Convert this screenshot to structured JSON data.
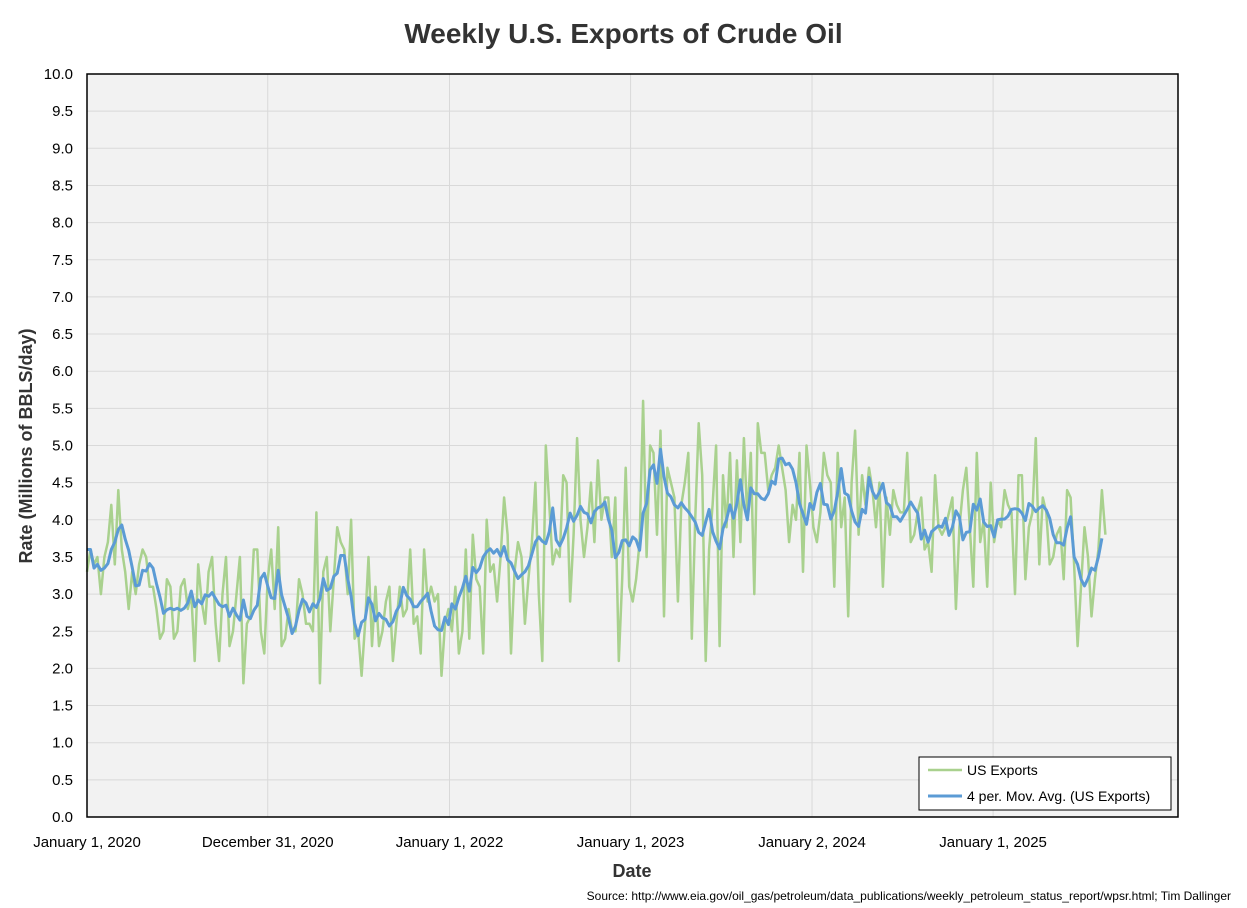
{
  "chart_data": {
    "type": "line",
    "title": "Weekly U.S. Exports of Crude Oil",
    "xlabel": "Date",
    "ylabel": "Rate (Millions of BBLS/day)",
    "ylim": [
      0,
      10
    ],
    "ytick_step": 0.5,
    "yticks": [
      "0.0",
      "0.5",
      "1.0",
      "1.5",
      "2.0",
      "2.5",
      "3.0",
      "3.5",
      "4.0",
      "4.5",
      "5.0",
      "5.5",
      "6.0",
      "6.5",
      "7.0",
      "7.5",
      "8.0",
      "8.5",
      "9.0",
      "9.5",
      "10.0"
    ],
    "x_week_range": [
      0,
      313.9
    ],
    "xticks": [
      {
        "label": "January 1, 2020",
        "week": 0
      },
      {
        "label": "December 31, 2020",
        "week": 52
      },
      {
        "label": "January 1, 2022",
        "week": 104.3
      },
      {
        "label": "January 1, 2023",
        "week": 156.4
      },
      {
        "label": "January 2, 2024",
        "week": 208.6
      },
      {
        "label": "January 1, 2025",
        "week": 260.7
      }
    ],
    "grid": true,
    "legend_position": "bottom-right",
    "series": [
      {
        "name": "US Exports",
        "color": "#a9d18e",
        "values": [
          3.3,
          3.6,
          3.4,
          3.5,
          3.0,
          3.5,
          3.7,
          4.2,
          3.4,
          4.4,
          3.6,
          3.3,
          2.8,
          3.3,
          3.0,
          3.4,
          3.6,
          3.5,
          3.1,
          3.1,
          2.8,
          2.4,
          2.5,
          3.2,
          3.1,
          2.4,
          2.5,
          3.1,
          3.2,
          2.8,
          3.0,
          2.1,
          3.4,
          2.9,
          2.6,
          3.3,
          3.5,
          2.6,
          2.1,
          3.0,
          3.5,
          2.3,
          2.5,
          3.0,
          3.5,
          1.8,
          2.6,
          2.7,
          3.6,
          3.6,
          2.5,
          2.2,
          3.2,
          3.6,
          2.8,
          3.9,
          2.3,
          2.4,
          2.8,
          2.5,
          2.5,
          3.2,
          3.0,
          2.6,
          2.6,
          2.5,
          4.1,
          1.8,
          3.3,
          3.5,
          2.5,
          3.2,
          3.9,
          3.7,
          3.6,
          3.0,
          4.0,
          2.4,
          2.5,
          1.9,
          2.6,
          3.5,
          2.3,
          3.1,
          2.3,
          2.5,
          2.9,
          3.1,
          2.1,
          2.6,
          3.1,
          2.7,
          2.8,
          3.6,
          2.6,
          2.7,
          2.2,
          3.6,
          2.9,
          3.1,
          2.9,
          3.0,
          1.9,
          2.6,
          2.8,
          2.5,
          3.1,
          2.2,
          2.5,
          3.6,
          2.4,
          3.8,
          3.2,
          3.1,
          2.2,
          4.0,
          3.3,
          3.4,
          2.9,
          3.5,
          4.3,
          3.8,
          2.2,
          3.3,
          3.7,
          3.5,
          2.6,
          3.2,
          3.7,
          4.5,
          3.0,
          2.1,
          5.0,
          4.2,
          3.4,
          3.6,
          3.5,
          4.6,
          4.5,
          2.9,
          3.8,
          5.1,
          4.0,
          3.5,
          3.9,
          4.5,
          3.7,
          4.8,
          4.0,
          4.3,
          4.3,
          3.5,
          4.3,
          2.1,
          3.2,
          4.7,
          3.1,
          2.9,
          3.2,
          3.7,
          5.6,
          3.5,
          5.0,
          4.9,
          3.8,
          5.2,
          2.7,
          4.7,
          4.5,
          4.3,
          2.9,
          4.2,
          4.5,
          4.9,
          2.4,
          4.0,
          5.3,
          4.6,
          2.1,
          3.6,
          4.2,
          5.0,
          2.3,
          4.6,
          3.9,
          4.9,
          3.5,
          4.8,
          3.7,
          5.1,
          4.0,
          4.9,
          3.0,
          5.3,
          4.9,
          4.9,
          4.4,
          4.6,
          4.7,
          5.0,
          4.7,
          4.4,
          3.7,
          4.2,
          4.0,
          4.9,
          3.3,
          5.0,
          4.5,
          3.9,
          3.7,
          4.1,
          4.9,
          4.6,
          4.5,
          3.1,
          4.9,
          3.9,
          4.3,
          2.7,
          4.5,
          5.2,
          3.8,
          4.6,
          4.2,
          4.7,
          4.4,
          3.9,
          4.5,
          3.1,
          4.3,
          3.8,
          4.4,
          4.2,
          4.1,
          4.1,
          4.9,
          3.7,
          3.8,
          4.1,
          4.3,
          3.6,
          3.7,
          3.3,
          4.6,
          3.9,
          3.8,
          3.9,
          4.1,
          4.3,
          2.8,
          3.9,
          4.4,
          4.7,
          3.9,
          3.1,
          4.9,
          3.7,
          4.0,
          3.1,
          4.5,
          3.7,
          4.0,
          3.9,
          4.4,
          4.2,
          4.1,
          3.0,
          4.6,
          4.6,
          3.2,
          3.9,
          4.1,
          5.1,
          3.4,
          4.3,
          4.1,
          3.4,
          3.5,
          3.8,
          3.9,
          3.2,
          4.4,
          4.3,
          3.4,
          2.3,
          3.1,
          3.9,
          3.5,
          2.7,
          3.2,
          3.6,
          4.4,
          3.8
        ]
      },
      {
        "name": "4 per. Mov. Avg. (US Exports)",
        "color": "#5b9bd5",
        "values": [
          3.6,
          3.6,
          3.35,
          3.4,
          3.32,
          3.35,
          3.41,
          3.6,
          3.7,
          3.87,
          3.93,
          3.74,
          3.59,
          3.36,
          3.11,
          3.12,
          3.32,
          3.31,
          3.41,
          3.35,
          3.14,
          2.96,
          2.74,
          2.79,
          2.81,
          2.79,
          2.81,
          2.78,
          2.81,
          2.88,
          3.04,
          2.83,
          2.92,
          2.87,
          2.99,
          2.97,
          3.02,
          2.94,
          2.86,
          2.83,
          2.85,
          2.7,
          2.81,
          2.72,
          2.65,
          2.92,
          2.7,
          2.67,
          2.78,
          2.85,
          3.21,
          3.28,
          3.11,
          2.95,
          2.94,
          3.32,
          2.99,
          2.83,
          2.67,
          2.47,
          2.57,
          2.78,
          2.93,
          2.88,
          2.76,
          2.87,
          2.82,
          2.94,
          3.21,
          3.05,
          3.08,
          3.24,
          3.28,
          3.52,
          3.52,
          3.21,
          2.97,
          2.61,
          2.44,
          2.62,
          2.66,
          2.95,
          2.86,
          2.64,
          2.74,
          2.68,
          2.66,
          2.57,
          2.63,
          2.77,
          2.85,
          3.09,
          2.98,
          2.93,
          2.83,
          2.83,
          2.9,
          2.95,
          3.01,
          2.77,
          2.57,
          2.52,
          2.51,
          2.69,
          2.59,
          2.87,
          2.8,
          2.96,
          3.08,
          3.24,
          3.04,
          3.36,
          3.29,
          3.35,
          3.5,
          3.57,
          3.61,
          3.55,
          3.6,
          3.51,
          3.64,
          3.46,
          3.42,
          3.31,
          3.21,
          3.26,
          3.3,
          3.38,
          3.54,
          3.7,
          3.77,
          3.71,
          3.68,
          3.84,
          4.16,
          3.73,
          3.65,
          3.75,
          3.89,
          4.09,
          3.98,
          4.06,
          4.18,
          4.1,
          4.08,
          3.96,
          4.11,
          4.16,
          4.18,
          4.24,
          4.01,
          3.86,
          3.49,
          3.56,
          3.72,
          3.73,
          3.65,
          3.77,
          3.73,
          3.59,
          4.09,
          4.22,
          4.67,
          4.74,
          4.49,
          4.95,
          4.58,
          4.36,
          4.31,
          4.2,
          4.16,
          4.23,
          4.16,
          4.11,
          4.04,
          3.97,
          3.83,
          3.79,
          3.97,
          4.14,
          3.84,
          3.71,
          3.61,
          3.88,
          4.0,
          4.2,
          4.02,
          4.22,
          4.54,
          4.2,
          4.0,
          4.43,
          4.35,
          4.35,
          4.29,
          4.27,
          4.35,
          4.52,
          4.48,
          4.82,
          4.83,
          4.74,
          4.76,
          4.68,
          4.5,
          4.22,
          4.08,
          3.94,
          4.22,
          4.14,
          4.37,
          4.49,
          4.21,
          4.2,
          4.01,
          4.12,
          4.37,
          4.69,
          4.36,
          4.33,
          4.12,
          3.97,
          3.91,
          4.14,
          4.09,
          4.57,
          4.38,
          4.29,
          4.37,
          4.49,
          4.23,
          4.19,
          4.04,
          4.04,
          3.98,
          4.06,
          4.14,
          4.24,
          4.16,
          4.09,
          3.74,
          3.86,
          3.7,
          3.84,
          3.88,
          3.92,
          3.9,
          4.02,
          3.79,
          3.9,
          4.12,
          4.04,
          3.73,
          3.83,
          3.84,
          4.21,
          4.13,
          4.28,
          3.97,
          3.91,
          3.92,
          3.77,
          4.0,
          4.01,
          4.01,
          4.05,
          4.14,
          4.15,
          4.14,
          4.09,
          3.99,
          4.22,
          4.18,
          4.11,
          4.16,
          4.19,
          4.13,
          4.02,
          3.8,
          3.69,
          3.69,
          3.66,
          3.89,
          4.04,
          3.5,
          3.4,
          3.2,
          3.11,
          3.21,
          3.35,
          3.32,
          3.5,
          3.75
        ]
      }
    ]
  },
  "source_text": "Source: http://www.eia.gov/oil_gas/petroleum/data_publications/weekly_petroleum_status_report/wpsr.html; Tim Dallinger"
}
